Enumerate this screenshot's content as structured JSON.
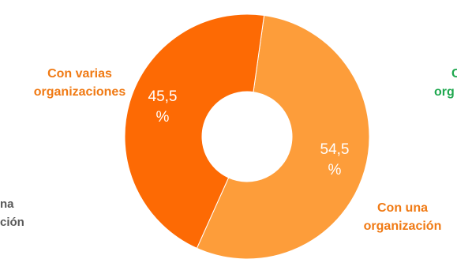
{
  "chart_data": {
    "type": "pie",
    "donut": true,
    "categories": [
      "Con una organización",
      "Con varias organizaciones"
    ],
    "values": [
      54.5,
      45.5
    ],
    "data_labels": [
      "54,5 %",
      "45,5 %"
    ],
    "colors": [
      "#fd9d3a",
      "#fd6a04"
    ]
  },
  "labels": {
    "varias_line1": "Con varias",
    "varias_line2": "organizaciones",
    "una_line1": "Con una",
    "una_line2": "organización",
    "pct_varias_num": "45,5",
    "pct_varias_sym": "%",
    "pct_una_num": "54,5",
    "pct_una_sym": "%",
    "left_fragment_line1": "na",
    "left_fragment_line2": "ción",
    "right_fragment_line1": "C",
    "right_fragment_line2": "org"
  },
  "label_colors": {
    "main": "#f07a14",
    "left_fragment": "#595959",
    "right_fragment": "#1fa84f"
  }
}
